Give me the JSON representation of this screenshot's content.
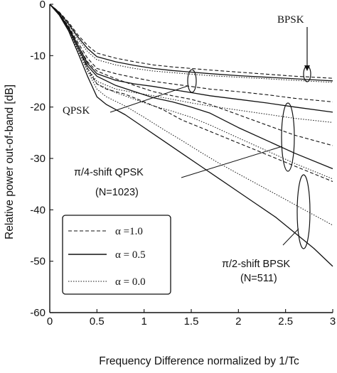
{
  "chart_data": {
    "type": "line",
    "xlabel": "Frequency Difference normalized by 1/Tc",
    "ylabel": "Relative power out-of-band [dB]",
    "xlim": [
      0,
      3
    ],
    "ylim": [
      -60,
      0
    ],
    "xticks": [
      "0",
      "0.5",
      "1",
      "1.5",
      "2",
      "2.5",
      "3"
    ],
    "yticks": [
      "0",
      "-10",
      "-20",
      "-30",
      "-40",
      "-50",
      "-60"
    ],
    "grid": false,
    "legend_position": "bottom-left",
    "legend": [
      {
        "label": "α =1.0",
        "style": "dashed"
      },
      {
        "label": "α = 0.5",
        "style": "solid"
      },
      {
        "label": "α = 0.0",
        "style": "dotted"
      }
    ],
    "annotations": [
      {
        "text": "BPSK"
      },
      {
        "text": "QPSK"
      },
      {
        "text": "π/4-shift QPSK"
      },
      {
        "text": "(N=1023)"
      },
      {
        "text": "π/2-shift BPSK"
      },
      {
        "text": "(N=511)"
      }
    ],
    "series": [
      {
        "style": "dashed",
        "x": [
          0,
          0.1,
          0.2,
          0.3,
          0.4,
          0.5,
          0.7,
          0.9,
          1.1,
          1.3,
          1.5,
          1.7,
          2.0,
          2.3,
          2.6,
          2.9,
          3.0
        ],
        "y": [
          0,
          -1.5,
          -3.5,
          -6,
          -8,
          -9.5,
          -10.5,
          -11.2,
          -11.8,
          -12.2,
          -12.5,
          -12.8,
          -13.2,
          -13.6,
          -14,
          -14.3,
          -14.4
        ]
      },
      {
        "style": "solid",
        "x": [
          0,
          0.1,
          0.2,
          0.3,
          0.4,
          0.5,
          0.7,
          0.9,
          1.1,
          1.3,
          1.5,
          1.7,
          2.0,
          2.3,
          2.6,
          2.9,
          3.0
        ],
        "y": [
          0,
          -1.6,
          -3.8,
          -6.4,
          -8.6,
          -10.2,
          -11.2,
          -11.9,
          -12.5,
          -12.9,
          -13.2,
          -13.5,
          -13.9,
          -14.2,
          -14.5,
          -14.8,
          -14.9
        ]
      },
      {
        "style": "dotted",
        "x": [
          0,
          0.1,
          0.2,
          0.3,
          0.4,
          0.5,
          0.7,
          0.9,
          1.1,
          1.3,
          1.5,
          1.7,
          2.0,
          2.3,
          2.6,
          2.9,
          3.0
        ],
        "y": [
          0,
          -1.7,
          -4,
          -6.8,
          -9.2,
          -10.8,
          -11.8,
          -12.5,
          -13,
          -13.3,
          -13.6,
          -13.9,
          -14.2,
          -14.5,
          -14.8,
          -15.1,
          -15.2
        ]
      },
      {
        "style": "dashed",
        "x": [
          0,
          0.1,
          0.2,
          0.3,
          0.4,
          0.5,
          0.7,
          0.9,
          1.1,
          1.3,
          1.5,
          1.7,
          2.0,
          2.3,
          2.6,
          3.0
        ],
        "y": [
          0,
          -1.8,
          -4.3,
          -7.5,
          -10.5,
          -12.5,
          -13.5,
          -14.3,
          -15,
          -15.5,
          -16,
          -16.5,
          -17,
          -17.6,
          -18.3,
          -19
        ]
      },
      {
        "style": "solid",
        "x": [
          0,
          0.1,
          0.2,
          0.3,
          0.4,
          0.5,
          0.7,
          0.9,
          1.1,
          1.3,
          1.5,
          1.7,
          2.0,
          2.3,
          2.6,
          3.0
        ],
        "y": [
          0,
          -1.9,
          -4.5,
          -8,
          -11.5,
          -13.5,
          -14.8,
          -15.5,
          -16,
          -16.6,
          -17.2,
          -17.8,
          -18.5,
          -19.2,
          -20,
          -21
        ]
      },
      {
        "style": "dotted",
        "x": [
          0,
          0.1,
          0.2,
          0.3,
          0.4,
          0.5,
          0.7,
          0.9,
          1.1,
          1.3,
          1.5,
          1.7,
          2.0,
          2.3,
          2.6,
          3.0
        ],
        "y": [
          0,
          -2,
          -4.8,
          -8.6,
          -12.5,
          -15,
          -16.5,
          -17.2,
          -17.8,
          -18.5,
          -19.2,
          -19.8,
          -20.6,
          -21.4,
          -22.2,
          -23
        ]
      },
      {
        "style": "dashed",
        "x": [
          0,
          0.1,
          0.2,
          0.3,
          0.4,
          0.5,
          0.7,
          0.9,
          1.1,
          1.3,
          1.5,
          1.7,
          2.0,
          2.3,
          2.6,
          3.0
        ],
        "y": [
          0,
          -1.9,
          -4.5,
          -8,
          -11.2,
          -13,
          -14.5,
          -15.8,
          -17,
          -17.8,
          -18.5,
          -19.5,
          -21.5,
          -23.5,
          -25.5,
          -27.5
        ]
      },
      {
        "style": "solid",
        "x": [
          0,
          0.1,
          0.2,
          0.3,
          0.4,
          0.5,
          0.7,
          0.9,
          1.1,
          1.3,
          1.5,
          1.7,
          2.0,
          2.3,
          2.6,
          3.0
        ],
        "y": [
          0,
          -2,
          -4.8,
          -8.5,
          -12,
          -14,
          -15.8,
          -17,
          -18.2,
          -19,
          -20,
          -21.2,
          -24,
          -26.5,
          -29,
          -32
        ]
      },
      {
        "style": "dotted",
        "x": [
          0,
          0.1,
          0.2,
          0.3,
          0.4,
          0.5,
          0.7,
          0.9,
          1.1,
          1.3,
          1.5,
          1.7,
          2.0,
          2.3,
          2.6,
          3.0
        ],
        "y": [
          0,
          -2.1,
          -5,
          -9,
          -13,
          -15.5,
          -17.2,
          -18.5,
          -19.8,
          -20.8,
          -22,
          -23.5,
          -26,
          -28.5,
          -31,
          -34
        ]
      },
      {
        "style": "dashed",
        "x": [
          0,
          0.1,
          0.2,
          0.3,
          0.4,
          0.5,
          0.6,
          0.8,
          1.0,
          1.2,
          1.4,
          1.6,
          1.8,
          2.0,
          2.2,
          2.4,
          2.6,
          2.8,
          3.0
        ],
        "y": [
          0,
          -2,
          -4.8,
          -8.5,
          -12.5,
          -15.5,
          -16.5,
          -17.5,
          -19,
          -20.5,
          -22.5,
          -24,
          -25.5,
          -27,
          -28.5,
          -30,
          -31.5,
          -33,
          -34.5
        ]
      },
      {
        "style": "solid",
        "x": [
          0,
          0.1,
          0.2,
          0.3,
          0.4,
          0.5,
          0.6,
          0.8,
          1.0,
          1.2,
          1.4,
          1.6,
          1.8,
          2.0,
          2.2,
          2.4,
          2.6,
          2.8,
          3.0
        ],
        "y": [
          0,
          -2.1,
          -5.2,
          -9.5,
          -14,
          -18,
          -19.5,
          -21.5,
          -24,
          -26.5,
          -29,
          -31.5,
          -34,
          -36.5,
          -39,
          -41.5,
          -44.5,
          -47.5,
          -51
        ]
      },
      {
        "style": "dotted",
        "x": [
          0,
          0.1,
          0.2,
          0.3,
          0.4,
          0.5,
          0.6,
          0.8,
          1.0,
          1.2,
          1.4,
          1.6,
          1.8,
          2.0,
          2.2,
          2.4,
          2.6,
          2.8,
          3.0
        ],
        "y": [
          0,
          -2.1,
          -5,
          -9,
          -13,
          -16.5,
          -18,
          -19.8,
          -22,
          -24.3,
          -26.5,
          -28.8,
          -31,
          -33,
          -35,
          -37,
          -39,
          -41,
          -43
        ]
      }
    ]
  }
}
